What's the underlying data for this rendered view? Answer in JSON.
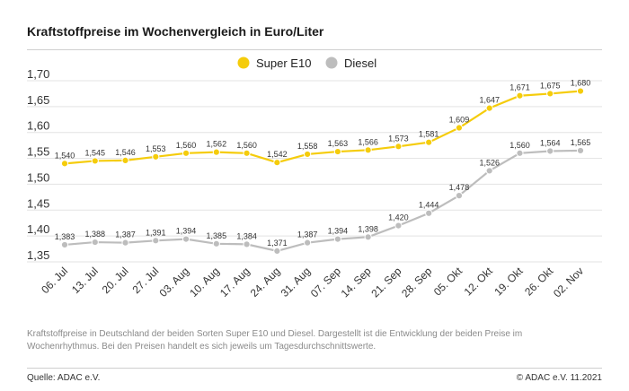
{
  "title": "Kraftstoffpreise im Wochenvergleich in Euro/Liter",
  "description": "Kraftstoffpreise in Deutschland der beiden Sorten Super E10 und Diesel. Dargestellt ist die Entwicklung der beiden Preise im Wochenrhythmus. Bei den Preisen handelt es sich jeweils um Tagesdurchschnittswerte.",
  "source": "Quelle: ADAC e.V.",
  "copyright": "© ADAC e.V. 11.2021",
  "colors": {
    "super_e10": "#f5cc0b",
    "diesel": "#bdbdbd"
  },
  "chart_data": {
    "type": "line",
    "categories": [
      "06. Jul",
      "13. Jul",
      "20. Jul",
      "27. Jul",
      "03. Aug",
      "10. Aug",
      "17. Aug",
      "24. Aug",
      "31. Aug",
      "07. Sep",
      "14. Sep",
      "21. Sep",
      "28. Sep",
      "05. Okt",
      "12. Okt",
      "19. Okt",
      "26. Okt",
      "02. Nov"
    ],
    "series": [
      {
        "name": "Super E10",
        "values": [
          1.54,
          1.545,
          1.546,
          1.553,
          1.56,
          1.562,
          1.56,
          1.542,
          1.558,
          1.563,
          1.566,
          1.573,
          1.581,
          1.609,
          1.647,
          1.671,
          1.675,
          1.68
        ],
        "labels": [
          "1,540",
          "1,545",
          "1,546",
          "1,553",
          "1,560",
          "1,562",
          "1,560",
          "1,542",
          "1,558",
          "1,563",
          "1,566",
          "1,573",
          "1,581",
          "1,609",
          "1,647",
          "1,671",
          "1,675",
          "1,680"
        ]
      },
      {
        "name": "Diesel",
        "values": [
          1.383,
          1.388,
          1.387,
          1.391,
          1.394,
          1.385,
          1.384,
          1.371,
          1.387,
          1.394,
          1.398,
          1.42,
          1.444,
          1.478,
          1.526,
          1.56,
          1.564,
          1.565
        ],
        "labels": [
          "1,383",
          "1,388",
          "1,387",
          "1,391",
          "1,394",
          "1,385",
          "1,384",
          "1,371",
          "1,387",
          "1,394",
          "1,398",
          "1,420",
          "1,444",
          "1,478",
          "1,526",
          "1,560",
          "1,564",
          "1,565"
        ]
      }
    ],
    "yticks": [
      1.35,
      1.4,
      1.45,
      1.5,
      1.55,
      1.6,
      1.65,
      1.7
    ],
    "ytick_labels": [
      "1,35",
      "1,40",
      "1,45",
      "1,50",
      "1,55",
      "1,60",
      "1,65",
      "1,70"
    ],
    "ylim": [
      1.35,
      1.7
    ],
    "grid": true,
    "legend": "top-center"
  }
}
